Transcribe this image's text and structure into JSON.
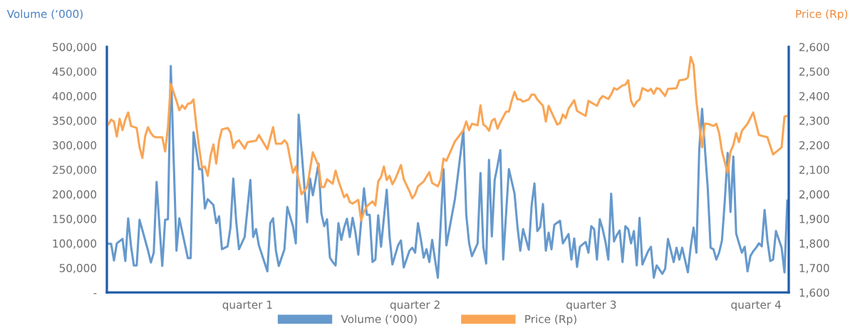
{
  "chart_data": {
    "type": "line",
    "ylabel": "Volume (‘000)",
    "y2label": "Price (Rp)",
    "categories": [
      null,
      null,
      null,
      null,
      null,
      null,
      null,
      null,
      null,
      null,
      null,
      null,
      null,
      null,
      null,
      null,
      null,
      null,
      null,
      null,
      null,
      null,
      null,
      null,
      null,
      null,
      null,
      null,
      null,
      null,
      null,
      null,
      null,
      null,
      null,
      null,
      null,
      null,
      null,
      null,
      null,
      null,
      null,
      null,
      null,
      null,
      null,
      null,
      null,
      "quarter 1",
      null,
      null,
      null,
      null,
      null,
      null,
      null,
      null,
      null,
      null,
      null,
      null,
      null,
      null,
      null,
      null,
      null,
      null,
      null,
      null,
      null,
      null,
      null,
      null,
      null,
      null,
      null,
      null,
      null,
      null,
      null,
      null,
      null,
      null,
      null,
      null,
      null,
      null,
      null,
      null,
      null,
      null,
      null,
      null,
      null,
      null,
      null,
      null,
      null,
      null,
      null,
      null,
      null,
      null,
      null,
      null,
      null,
      null,
      "quarter 2",
      null,
      null,
      null,
      null,
      null,
      null,
      null,
      null,
      null,
      null,
      null,
      null,
      null,
      null,
      null,
      null,
      null,
      null,
      null,
      null,
      null,
      null,
      null,
      null,
      null,
      null,
      null,
      null,
      null,
      null,
      null,
      null,
      null,
      null,
      null,
      null,
      null,
      null,
      null,
      null,
      null,
      null,
      null,
      null,
      null,
      null,
      null,
      null,
      null,
      null,
      null,
      null,
      null,
      null,
      null,
      null,
      null,
      null,
      null,
      null,
      null,
      "quarter 3",
      null,
      null,
      null,
      null,
      null,
      null,
      null,
      null,
      null,
      null,
      null,
      null,
      null,
      null,
      null,
      null,
      null,
      null,
      null,
      null,
      null,
      null,
      null,
      null,
      null,
      null,
      null,
      null,
      null,
      null,
      null,
      null,
      null,
      null,
      null,
      null,
      null,
      null,
      null,
      null,
      null,
      null,
      null,
      null,
      null,
      null,
      null,
      null,
      null,
      null,
      null,
      null,
      null,
      null,
      null,
      null,
      null,
      "quarter 4",
      null,
      null,
      null,
      null,
      null,
      null,
      null,
      null,
      null,
      null,
      null
    ],
    "ylim": [
      0,
      500000
    ],
    "yticks": [
      {
        "value": 0,
        "label": "-"
      },
      {
        "value": 50000,
        "label": "50,000"
      },
      {
        "value": 100000,
        "label": "100,000"
      },
      {
        "value": 150000,
        "label": "150,000"
      },
      {
        "value": 200000,
        "label": "200,000"
      },
      {
        "value": 250000,
        "label": "250,000"
      },
      {
        "value": 300000,
        "label": "300,000"
      },
      {
        "value": 350000,
        "label": "350,000"
      },
      {
        "value": 400000,
        "label": "400,000"
      },
      {
        "value": 450000,
        "label": "450,000"
      },
      {
        "value": 500000,
        "label": "500,000"
      }
    ],
    "y2lim": [
      1600,
      2600
    ],
    "y2ticks": [
      {
        "value": 1600,
        "label": "1,600"
      },
      {
        "value": 1700,
        "label": "1,700"
      },
      {
        "value": 1800,
        "label": "1,800"
      },
      {
        "value": 1900,
        "label": "1,900"
      },
      {
        "value": 2000,
        "label": "2,000"
      },
      {
        "value": 2100,
        "label": "2,100"
      },
      {
        "value": 2200,
        "label": "2,200"
      },
      {
        "value": 2300,
        "label": "2,300"
      },
      {
        "value": 2400,
        "label": "2,400"
      },
      {
        "value": 2500,
        "label": "2,500"
      },
      {
        "value": 2600,
        "label": "2,600"
      }
    ],
    "legend": "bottom",
    "grid": false,
    "marker": "none",
    "line_style": "solid",
    "series": [
      {
        "name": "Volume (‘000)",
        "color": "#6699cc",
        "values": [
          99000,
          99000,
          65000,
          100000,
          null,
          109000,
          64000,
          151000,
          94000,
          55000,
          55000,
          148000,
          null,
          null,
          85000,
          61000,
          81000,
          225000,
          136000,
          54000,
          148000,
          149000,
          461000,
          null,
          85000,
          151000,
          null,
          null,
          70000,
          70000,
          326000,
          null,
          251000,
          251000,
          171000,
          190000,
          null,
          178000,
          141000,
          155000,
          88000,
          null,
          94000,
          132000,
          232000,
          146000,
          88000,
          null,
          113000,
          null,
          229000,
          113000,
          129000,
          96000,
          null,
          null,
          43000,
          141000,
          151000,
          85000,
          54000,
          71000,
          88000,
          174000,
          null,
          135000,
          100000,
          362000,
          291000,
          null,
          143000,
          232000,
          198000,
          null,
          262000,
          161000,
          135000,
          149000,
          71000,
          62000,
          55000,
          141000,
          107000,
          132000,
          150000,
          113000,
          152000,
          122000,
          77000,
          null,
          212000,
          158000,
          158000,
          62000,
          67000,
          157000,
          93000,
          null,
          209000,
          114000,
          57000,
          null,
          96000,
          106000,
          51000,
          null,
          85000,
          91000,
          81000,
          141000,
          109000,
          71000,
          88000,
          62000,
          107000,
          67000,
          30000,
          null,
          251000,
          96000,
          null,
          null,
          190000,
          null,
          null,
          330000,
          158000,
          100000,
          74000,
          null,
          100000,
          243000,
          93000,
          59000,
          270000,
          114000,
          229000,
          258000,
          290000,
          67000,
          null,
          251000,
          null,
          201000,
          135000,
          85000,
          129000,
          null,
          87000,
          177000,
          222000,
          125000,
          133000,
          180000,
          85000,
          122000,
          88000,
          138000,
          null,
          146000,
          100000,
          null,
          119000,
          67000,
          110000,
          52000,
          93000,
          null,
          103000,
          81000,
          135000,
          129000,
          67000,
          149000,
          129000,
          103000,
          67000,
          201000,
          104000,
          117000,
          126000,
          62000,
          135000,
          129000,
          100000,
          125000,
          55000,
          152000,
          57000,
          null,
          84000,
          93000,
          30000,
          55000,
          null,
          38000,
          48000,
          109000,
          null,
          62000,
          91000,
          67000,
          91000,
          null,
          41000,
          93000,
          132000,
          81000,
          291000,
          374000,
          null,
          212000,
          91000,
          88000,
          67000,
          81000,
          106000,
          187000,
          284000,
          164000,
          277000,
          120000,
          100000,
          81000,
          93000,
          43000,
          74000,
          84000,
          91000,
          100000,
          94000,
          168000,
          106000,
          64000,
          67000,
          125000,
          null,
          91000,
          41000,
          187000
        ]
      },
      {
        "name": "Price (Rp)",
        "color": "#f9a555",
        "axis": "y2",
        "values": [
          2284,
          2304,
          2296,
          2235,
          2307,
          2261,
          2304,
          2333,
          2278,
          null,
          2270,
          2191,
          2148,
          2238,
          2273,
          2249,
          2235,
          2232,
          null,
          2232,
          2174,
          2273,
          2449,
          null,
          2380,
          2342,
          2362,
          2348,
          2368,
          2371,
          2386,
          2278,
          2188,
          2107,
          2113,
          2075,
          2157,
          2203,
          2125,
          2218,
          2264,
          null,
          2270,
          2252,
          2188,
          2212,
          2220,
          null,
          2186,
          2212,
          null,
          null,
          2218,
          2241,
          null,
          null,
          2183,
          null,
          2273,
          2206,
          2206,
          2206,
          2220,
          2206,
          2145,
          2087,
          2113,
          2058,
          2000,
          null,
          2029,
          null,
          2171,
          null,
          2116,
          2029,
          2029,
          2061,
          null,
          2043,
          2096,
          2055,
          null,
          1988,
          2000,
          1968,
          1962,
          null,
          1977,
          1893,
          1928,
          1951,
          null,
          1971,
          1954,
          2052,
          2070,
          2113,
          2058,
          2075,
          2041,
          2061,
          null,
          2119,
          2061,
          null,
          2012,
          1983,
          2000,
          2032,
          null,
          2052,
          null,
          2090,
          2046,
          null,
          2032,
          2061,
          2145,
          2136,
          null,
          null,
          2215,
          null,
          null,
          2261,
          2296,
          2261,
          2287,
          null,
          2281,
          2362,
          2284,
          2275,
          2258,
          2299,
          2307,
          2267,
          2293,
          null,
          2336,
          2336,
          2380,
          2417,
          2386,
          2386,
          2377,
          null,
          2386,
          2406,
          2406,
          2386,
          null,
          2360,
          2296,
          2360,
          null,
          null,
          2284,
          2290,
          2325,
          2310,
          2348,
          null,
          2383,
          2339,
          null,
          null,
          2319,
          2380,
          null,
          null,
          2360,
          2386,
          2400,
          null,
          2388,
          2406,
          2432,
          2426,
          null,
          2443,
          2446,
          2464,
          2380,
          2357,
          2377,
          2386,
          2432,
          null,
          2420,
          2429,
          2409,
          2432,
          2429,
          null,
          2400,
          2429,
          null,
          null,
          2432,
          2464,
          null,
          2467,
          2475,
          2559,
          2528,
          2377,
          null,
          2191,
          2287,
          2287,
          null,
          2278,
          2287,
          2249,
          2174,
          null,
          2087,
          2174,
          2200,
          2249,
          2212,
          2258,
          null,
          2287,
          null,
          2333,
          null,
          2241,
          null,
          null,
          2232,
          null,
          2162,
          null,
          null,
          2191,
          2316,
          2319
        ]
      }
    ]
  }
}
